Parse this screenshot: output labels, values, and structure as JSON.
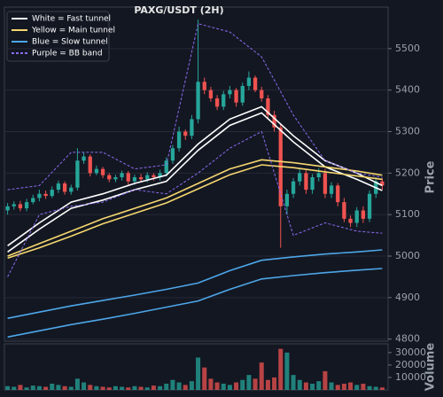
{
  "chart_data": [
    {
      "type": "candlestick",
      "title": "PAXG/USDT (2H)",
      "y_label": "Price",
      "up_color": "#26a69a",
      "down_color": "#ef5350",
      "ylim": [
        4795,
        5600
      ],
      "yticks": [
        4800,
        4900,
        5000,
        5100,
        5200,
        5300,
        5400,
        5500
      ],
      "grid": true,
      "xlim": [
        -0.5,
        59.5
      ],
      "legend": "upper left",
      "candles": {
        "open": [
          5110,
          5120,
          5125,
          5115,
          5130,
          5140,
          5150,
          5145,
          5160,
          5175,
          5155,
          5165,
          5230,
          5240,
          5200,
          5210,
          5195,
          5185,
          5190,
          5200,
          5180,
          5190,
          5185,
          5195,
          5190,
          5200,
          5230,
          5260,
          5300,
          5290,
          5330,
          5420,
          5400,
          5380,
          5360,
          5390,
          5400,
          5370,
          5410,
          5430,
          5400,
          5380,
          5340,
          5310,
          5120,
          5150,
          5180,
          5200,
          5160,
          5190,
          5200,
          5150,
          5170,
          5130,
          5090,
          5080,
          5110,
          5090,
          5150,
          5180
        ],
        "high": [
          5128,
          5132,
          5133,
          5138,
          5148,
          5160,
          5158,
          5168,
          5182,
          5180,
          5172,
          5260,
          5250,
          5245,
          5218,
          5215,
          5200,
          5196,
          5206,
          5205,
          5196,
          5198,
          5202,
          5200,
          5208,
          5238,
          5268,
          5312,
          5305,
          5340,
          5570,
          5430,
          5408,
          5388,
          5398,
          5410,
          5405,
          5418,
          5445,
          5435,
          5408,
          5388,
          5350,
          5320,
          5160,
          5188,
          5210,
          5210,
          5198,
          5212,
          5210,
          5178,
          5176,
          5140,
          5098,
          5118,
          5120,
          5158,
          5190,
          5188
        ],
        "low": [
          5100,
          5112,
          5108,
          5108,
          5125,
          5132,
          5138,
          5140,
          5152,
          5148,
          5148,
          5158,
          5222,
          5192,
          5195,
          5188,
          5178,
          5178,
          5182,
          5172,
          5172,
          5178,
          5178,
          5182,
          5182,
          5192,
          5222,
          5252,
          5280,
          5282,
          5320,
          5390,
          5372,
          5352,
          5352,
          5380,
          5360,
          5362,
          5400,
          5395,
          5372,
          5330,
          5300,
          5020,
          5100,
          5140,
          5170,
          5150,
          5150,
          5180,
          5140,
          5140,
          5120,
          5082,
          5070,
          5070,
          5080,
          5082,
          5140,
          5160
        ],
        "close": [
          5120,
          5125,
          5115,
          5130,
          5140,
          5150,
          5145,
          5160,
          5175,
          5155,
          5165,
          5230,
          5240,
          5200,
          5210,
          5195,
          5185,
          5190,
          5200,
          5180,
          5190,
          5185,
          5195,
          5190,
          5200,
          5230,
          5260,
          5300,
          5290,
          5330,
          5420,
          5400,
          5380,
          5360,
          5390,
          5400,
          5370,
          5410,
          5430,
          5400,
          5380,
          5340,
          5310,
          5120,
          5150,
          5180,
          5200,
          5160,
          5190,
          5200,
          5150,
          5170,
          5130,
          5090,
          5080,
          5110,
          5090,
          5150,
          5180,
          5170
        ]
      },
      "line_x": [
        0,
        5,
        10,
        15,
        20,
        25,
        30,
        35,
        40,
        45,
        50,
        55,
        59
      ],
      "series": [
        {
          "name": "White = Fast tunnel",
          "color": "#ffffff",
          "dashed": false,
          "upper": [
            5025,
            5080,
            5130,
            5150,
            5175,
            5195,
            5270,
            5330,
            5360,
            5290,
            5230,
            5200,
            5170
          ],
          "lower": [
            5010,
            5065,
            5115,
            5135,
            5160,
            5180,
            5255,
            5315,
            5345,
            5275,
            5215,
            5185,
            5158
          ]
        },
        {
          "name": "Yellow = Main tunnel",
          "color": "#f5d76e",
          "dashed": false,
          "upper": [
            5000,
            5030,
            5060,
            5090,
            5115,
            5140,
            5175,
            5210,
            5232,
            5225,
            5215,
            5205,
            5195
          ],
          "lower": [
            4995,
            5020,
            5048,
            5078,
            5103,
            5128,
            5162,
            5196,
            5220,
            5213,
            5203,
            5193,
            5185
          ]
        },
        {
          "name": "Blue = Slow tunnel",
          "color": "#4da6e8",
          "dashed": false,
          "upper": [
            4850,
            4865,
            4880,
            4893,
            4906,
            4920,
            4935,
            4965,
            4990,
            4998,
            5005,
            5010,
            5015
          ],
          "lower": [
            4805,
            4820,
            4835,
            4848,
            4862,
            4877,
            4892,
            4920,
            4945,
            4953,
            4960,
            4966,
            4970
          ]
        },
        {
          "name": "Purple = BB band",
          "color": "#8b6cf0",
          "dashed": true,
          "upper": [
            5160,
            5170,
            5250,
            5250,
            5210,
            5220,
            5560,
            5540,
            5480,
            5340,
            5230,
            5200,
            5190
          ],
          "lower": [
            4950,
            5100,
            5120,
            5130,
            5160,
            5150,
            5200,
            5260,
            5300,
            5050,
            5080,
            5060,
            5055
          ]
        }
      ]
    },
    {
      "type": "bar",
      "y_label": "Volume",
      "ylim": [
        0,
        37000
      ],
      "yticks": [
        10000,
        20000,
        30000
      ],
      "xlim": [
        -0.5,
        59.5
      ],
      "values": [
        3000,
        2500,
        4000,
        2000,
        3500,
        3000,
        2500,
        5000,
        4000,
        3000,
        2500,
        9000,
        6000,
        4000,
        3000,
        2500,
        2000,
        3000,
        2500,
        2000,
        3000,
        2500,
        2000,
        3500,
        3000,
        5000,
        8000,
        6000,
        4000,
        7000,
        26000,
        18000,
        9000,
        6000,
        5000,
        4000,
        6000,
        8000,
        12000,
        9000,
        22000,
        8000,
        10000,
        33000,
        30000,
        12000,
        8000,
        6000,
        5000,
        7000,
        15000,
        6000,
        4000,
        5000,
        6000,
        4000,
        5000,
        3000,
        2500,
        2000
      ]
    }
  ]
}
